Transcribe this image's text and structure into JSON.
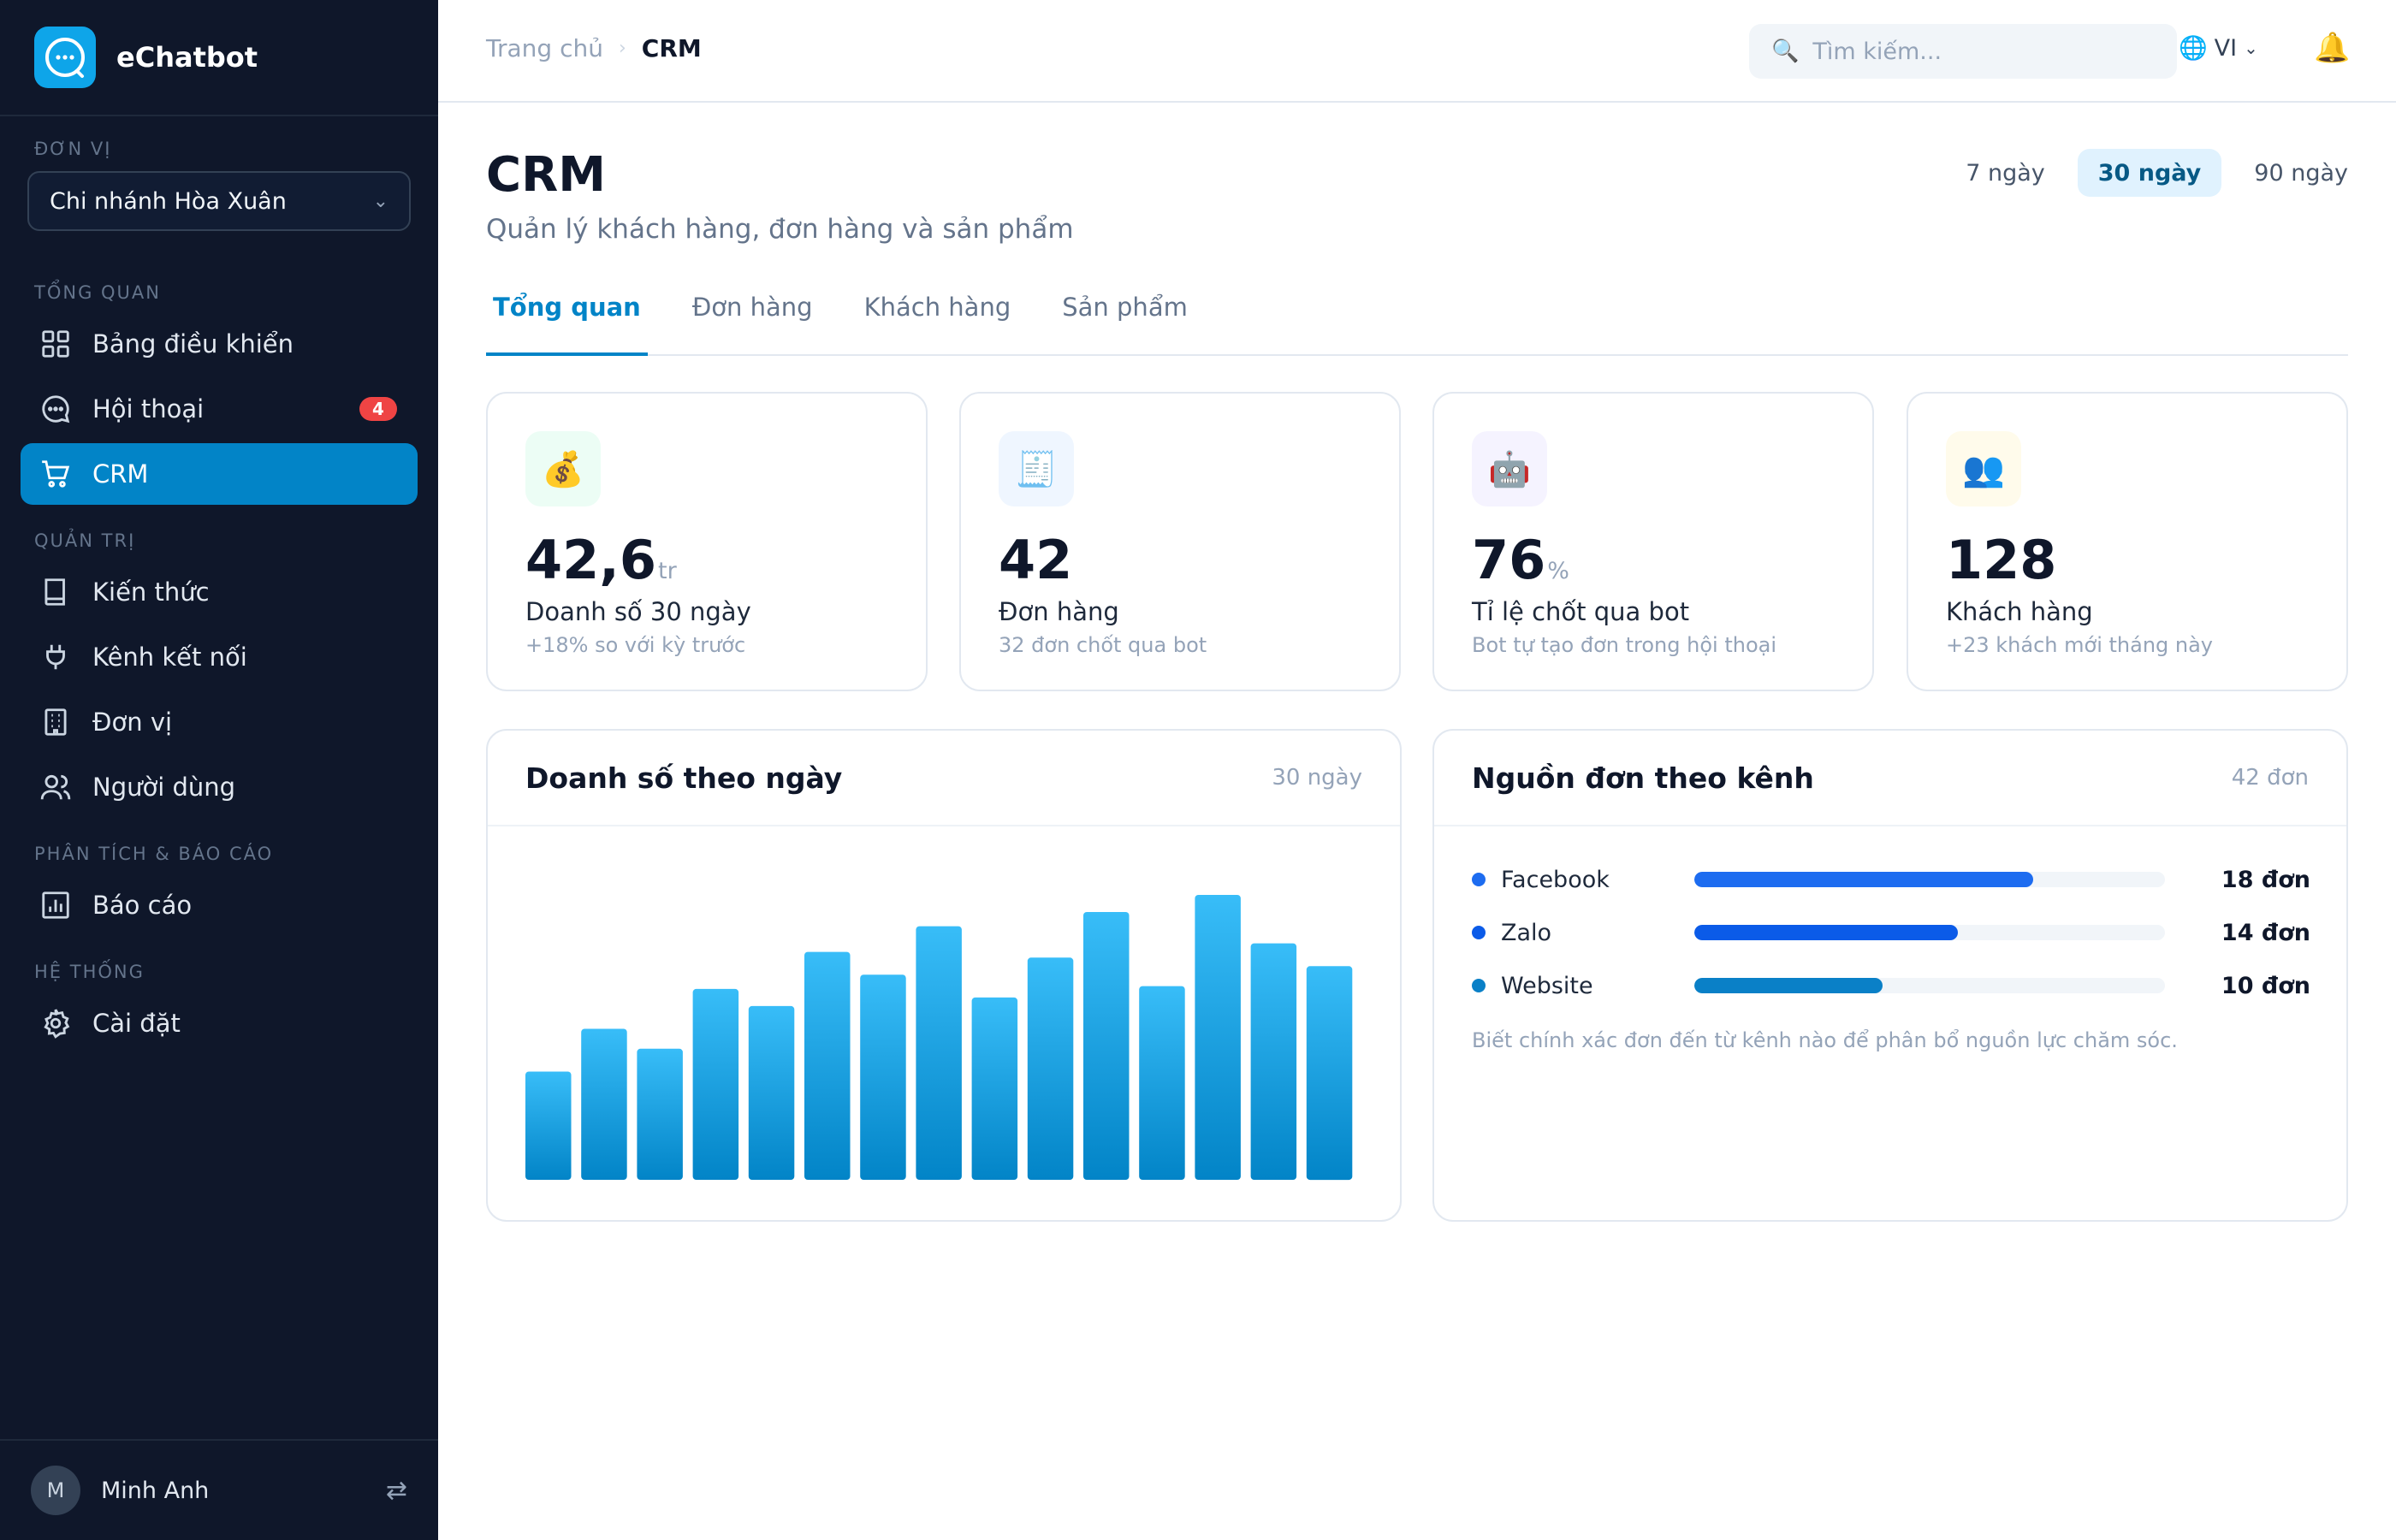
{
  "brand": {
    "name": "eChatbot"
  },
  "sidebar": {
    "unit_label": "ĐƠN VỊ",
    "unit_value": "Chi nhánh Hòa Xuân",
    "sections": {
      "overview": "TỔNG QUAN",
      "admin": "QUẢN TRỊ",
      "analytics": "PHÂN TÍCH & BÁO CÁO",
      "system": "HỆ THỐNG"
    },
    "items": [
      {
        "label": "Bảng điều khiển",
        "icon": "grid-icon"
      },
      {
        "label": "Hội thoại",
        "icon": "chat-icon",
        "badge": "4"
      },
      {
        "label": "CRM",
        "icon": "cart-icon",
        "active": true
      },
      {
        "label": "Kiến thức",
        "icon": "book-icon"
      },
      {
        "label": "Kênh kết nối",
        "icon": "plug-icon"
      },
      {
        "label": "Đơn vị",
        "icon": "building-icon"
      },
      {
        "label": "Người dùng",
        "icon": "users-icon"
      },
      {
        "label": "Báo cáo",
        "icon": "bar-chart-icon"
      },
      {
        "label": "Cài đặt",
        "icon": "gear-icon"
      }
    ],
    "user": {
      "initial": "M",
      "name": "Minh Anh"
    }
  },
  "topbar": {
    "breadcrumb": {
      "home": "Trang chủ",
      "separator": "›",
      "current": "CRM"
    },
    "search_placeholder": "Tìm kiếm...",
    "lang": "VI"
  },
  "page": {
    "title": "CRM",
    "subtitle": "Quản lý khách hàng, đơn hàng và sản phẩm",
    "ranges": [
      "7 ngày",
      "30 ngày",
      "90 ngày"
    ],
    "active_range": "30 ngày",
    "tabs": [
      "Tổng quan",
      "Đơn hàng",
      "Khách hàng",
      "Sản phẩm"
    ],
    "active_tab": "Tổng quan"
  },
  "kpis": [
    {
      "value": "42,6",
      "unit": "tr",
      "label": "Doanh số 30 ngày",
      "note": "+18% so với kỳ trước",
      "icon": "money-bag-icon",
      "glyph": "💰",
      "bg": "#ecfdf5"
    },
    {
      "value": "42",
      "unit": "",
      "label": "Đơn hàng",
      "note": "32 đơn chốt qua bot",
      "icon": "receipt-icon",
      "glyph": "🧾",
      "bg": "#eff6ff"
    },
    {
      "value": "76",
      "unit": "%",
      "label": "Tỉ lệ chốt qua bot",
      "note": "Bot tự tạo đơn trong hội thoại",
      "icon": "robot-icon",
      "glyph": "🤖",
      "bg": "#f5f3ff"
    },
    {
      "value": "128",
      "unit": "",
      "label": "Khách hàng",
      "note": "+23 khách mới tháng này",
      "icon": "people-icon",
      "glyph": "👥",
      "bg": "#fffbeb"
    }
  ],
  "revenue_panel": {
    "title": "Doanh số theo ngày",
    "meta": "30 ngày"
  },
  "source_panel": {
    "title": "Nguồn đơn theo kênh",
    "meta": "42 đơn",
    "note": "Biết chính xác đơn đến từ kênh nào để phân bổ nguồn lực chăm sóc."
  },
  "colors": {
    "accent": "#0284c7",
    "bar_top": "#38bdf8",
    "bar_bottom": "#0284c7"
  },
  "chart_data": [
    {
      "type": "bar",
      "title": "Doanh số theo ngày",
      "values": [
        0.38,
        0.53,
        0.46,
        0.67,
        0.61,
        0.8,
        0.72,
        0.89,
        0.64,
        0.78,
        0.94,
        0.68,
        1.0,
        0.83,
        0.75
      ]
    },
    {
      "type": "bar",
      "title": "Nguồn đơn theo kênh",
      "categories": [
        "Facebook",
        "Zalo",
        "Website"
      ],
      "values": [
        18,
        14,
        10
      ],
      "value_labels": [
        "18 đơn",
        "14 đơn",
        "10 đơn"
      ],
      "colors": [
        "#1d6cf0",
        "#0b5be8",
        "#0a80c7"
      ],
      "max": 25
    }
  ]
}
